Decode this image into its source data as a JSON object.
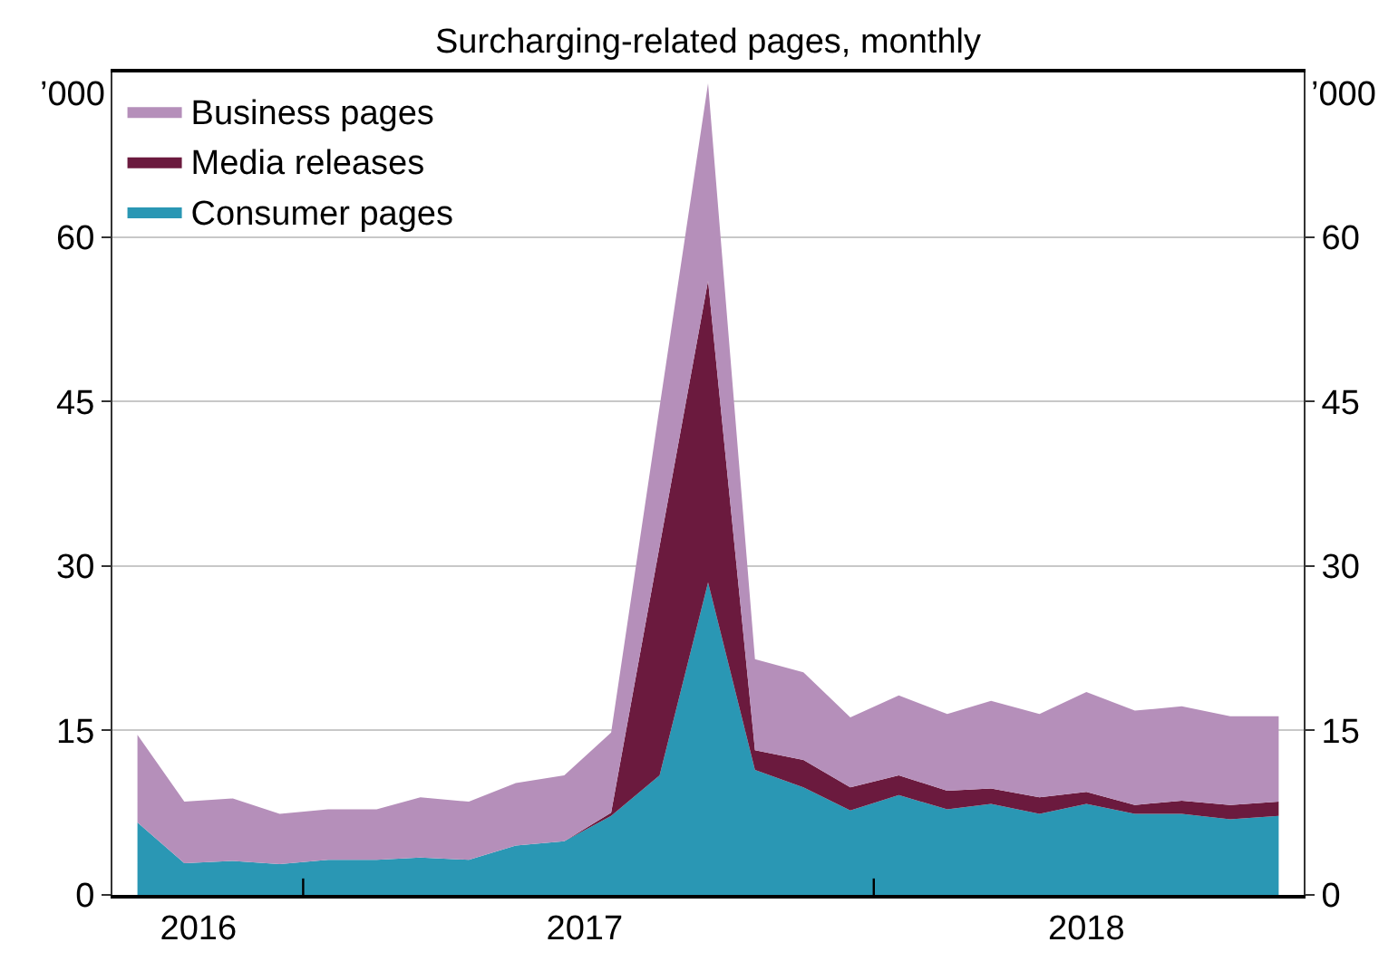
{
  "chart_data": {
    "type": "area",
    "title": "Surcharging-related pages, monthly",
    "ylabel": "’000",
    "y2label": "’000",
    "x": [
      "2016-09",
      "2016-10",
      "2016-11",
      "2016-12",
      "2017-01",
      "2017-02",
      "2017-03",
      "2017-04",
      "2017-05",
      "2017-06",
      "2017-07",
      "2017-08",
      "2017-09",
      "2017-10",
      "2017-11",
      "2017-12",
      "2018-01",
      "2018-02",
      "2018-03",
      "2018-04",
      "2018-05",
      "2018-06",
      "2018-07",
      "2018-08",
      "2018-09"
    ],
    "stacked": true,
    "series": [
      {
        "name": "Consumer pages",
        "color": "#2a97b4",
        "values": [
          6.6,
          2.9,
          3.1,
          2.8,
          3.2,
          3.2,
          3.4,
          3.2,
          4.5,
          4.9,
          7.2,
          10.9,
          28.5,
          11.4,
          9.8,
          7.7,
          9.1,
          7.8,
          8.3,
          7.4,
          8.3,
          7.4,
          7.4,
          6.9,
          7.2
        ]
      },
      {
        "name": "Media releases",
        "color": "#6b1a3e",
        "values": [
          0,
          0,
          0,
          0,
          0,
          0,
          0,
          0,
          0,
          0,
          0.3,
          20.9,
          27.5,
          1.8,
          2.5,
          2.1,
          1.8,
          1.7,
          1.4,
          1.5,
          1.1,
          0.8,
          1.2,
          1.3,
          1.3
        ]
      },
      {
        "name": "Business pages",
        "color": "#b58fba",
        "values": [
          8.0,
          5.6,
          5.7,
          4.6,
          4.6,
          4.6,
          5.5,
          5.3,
          5.7,
          6.0,
          7.3,
          12.7,
          18.0,
          8.3,
          8.0,
          6.4,
          7.3,
          7.0,
          8.0,
          7.6,
          9.1,
          8.6,
          8.6,
          8.1,
          7.8
        ]
      }
    ],
    "xlim": [
      "2016-08-16",
      "2018-09-17"
    ],
    "xticks": [
      {
        "value": "2016-10-10",
        "label": "2016"
      },
      {
        "value": "2016-12-16",
        "label": null
      },
      {
        "value": "2017-06-14",
        "label": "2017"
      },
      {
        "value": "2017-12-16",
        "label": null
      },
      {
        "value": "2018-05-01",
        "label": "2018"
      }
    ],
    "ylim": [
      0,
      75
    ],
    "yticks": [
      0,
      15,
      30,
      45,
      60
    ],
    "y2lim": [
      0,
      75
    ],
    "y2ticks": [
      0,
      15,
      30,
      45,
      60
    ],
    "grid": "y",
    "legend": "top left"
  }
}
